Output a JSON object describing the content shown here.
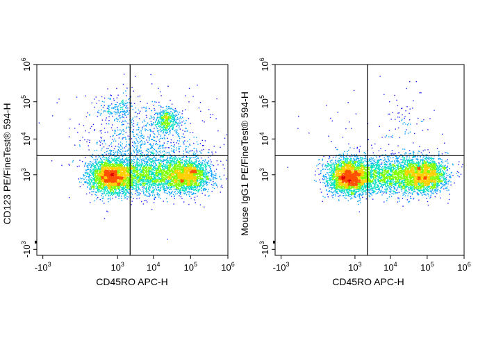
{
  "chart_data": [
    {
      "type": "scatter",
      "subtype": "flow-cytometry-density-dot-plot",
      "scale": "biexponential",
      "xlabel": "CD45RO APC-H",
      "ylabel": "CD123 PE/FineTest® 594-H",
      "x_ticks": [
        {
          "base": "-10",
          "exp": "3",
          "value": -1000
        },
        {
          "base": "10",
          "exp": "3",
          "value": 1000
        },
        {
          "base": "10",
          "exp": "4",
          "value": 10000
        },
        {
          "base": "10",
          "exp": "5",
          "value": 100000
        },
        {
          "base": "10",
          "exp": "6",
          "value": 1000000
        }
      ],
      "y_ticks": [
        {
          "base": "-10",
          "exp": "3",
          "value": -1000
        },
        {
          "base": "10",
          "exp": "3",
          "value": 1000
        },
        {
          "base": "10",
          "exp": "4",
          "value": 10000
        },
        {
          "base": "10",
          "exp": "5",
          "value": 100000
        },
        {
          "base": "10",
          "exp": "6",
          "value": 1000000
        }
      ],
      "xlim": [
        -1500,
        1000000
      ],
      "ylim": [
        -1500,
        1000000
      ],
      "gate": {
        "x": 2300,
        "y": 3500
      },
      "grid": false,
      "populations": [
        {
          "x": 600,
          "y": 900,
          "count": 2400,
          "spread_x": 0.22,
          "spread_y": 0.18
        },
        {
          "x": 1500,
          "y": 1000,
          "count": 700,
          "spread_x": 0.35,
          "spread_y": 0.2
        },
        {
          "x": 15000,
          "y": 1000,
          "count": 1700,
          "spread_x": 0.45,
          "spread_y": 0.2
        },
        {
          "x": 80000,
          "y": 1000,
          "count": 1700,
          "spread_x": 0.25,
          "spread_y": 0.18
        },
        {
          "x": 22000,
          "y": 32000,
          "count": 420,
          "spread_x": 0.12,
          "spread_y": 0.12
        },
        {
          "x": 900,
          "y": 65000,
          "count": 140,
          "spread_x": 0.2,
          "spread_y": 0.12
        },
        {
          "x": 8000,
          "y": 8000,
          "count": 550,
          "spread_x": 0.6,
          "spread_y": 0.45
        },
        {
          "x": 2000,
          "y": 6000,
          "count": 260,
          "spread_x": 0.5,
          "spread_y": 0.35
        },
        {
          "x": 5000,
          "y": 20000,
          "count": 160,
          "spread_x": 0.8,
          "spread_y": 0.5
        }
      ],
      "colors": [
        "#1a1aff",
        "#00a0ff",
        "#00e0c0",
        "#7fff00",
        "#ffd000",
        "#ff5000",
        "#e00000"
      ]
    },
    {
      "type": "scatter",
      "subtype": "flow-cytometry-density-dot-plot",
      "scale": "biexponential",
      "xlabel": "CD45RO APC-H",
      "ylabel": "Mouse IgG1 PE/FineTest® 594-H",
      "x_ticks": [
        {
          "base": "-10",
          "exp": "3",
          "value": -1000
        },
        {
          "base": "10",
          "exp": "3",
          "value": 1000
        },
        {
          "base": "10",
          "exp": "4",
          "value": 10000
        },
        {
          "base": "10",
          "exp": "5",
          "value": 100000
        },
        {
          "base": "10",
          "exp": "6",
          "value": 1000000
        }
      ],
      "y_ticks": [
        {
          "base": "-10",
          "exp": "3",
          "value": -1000
        },
        {
          "base": "10",
          "exp": "3",
          "value": 1000
        },
        {
          "base": "10",
          "exp": "4",
          "value": 10000
        },
        {
          "base": "10",
          "exp": "5",
          "value": 100000
        },
        {
          "base": "10",
          "exp": "6",
          "value": 1000000
        }
      ],
      "xlim": [
        -1500,
        1000000
      ],
      "ylim": [
        -1500,
        1000000
      ],
      "gate": {
        "x": 2300,
        "y": 3500
      },
      "grid": false,
      "populations": [
        {
          "x": 600,
          "y": 900,
          "count": 2400,
          "spread_x": 0.22,
          "spread_y": 0.18
        },
        {
          "x": 1500,
          "y": 1000,
          "count": 700,
          "spread_x": 0.35,
          "spread_y": 0.2
        },
        {
          "x": 15000,
          "y": 1000,
          "count": 1700,
          "spread_x": 0.45,
          "spread_y": 0.2
        },
        {
          "x": 80000,
          "y": 1000,
          "count": 1900,
          "spread_x": 0.25,
          "spread_y": 0.18
        },
        {
          "x": 28000,
          "y": 30000,
          "count": 45,
          "spread_x": 0.25,
          "spread_y": 0.25
        },
        {
          "x": 5000,
          "y": 12000,
          "count": 70,
          "spread_x": 0.9,
          "spread_y": 0.6
        }
      ],
      "colors": [
        "#1a1aff",
        "#00a0ff",
        "#00e0c0",
        "#7fff00",
        "#ffd000",
        "#ff5000",
        "#e00000"
      ]
    }
  ]
}
